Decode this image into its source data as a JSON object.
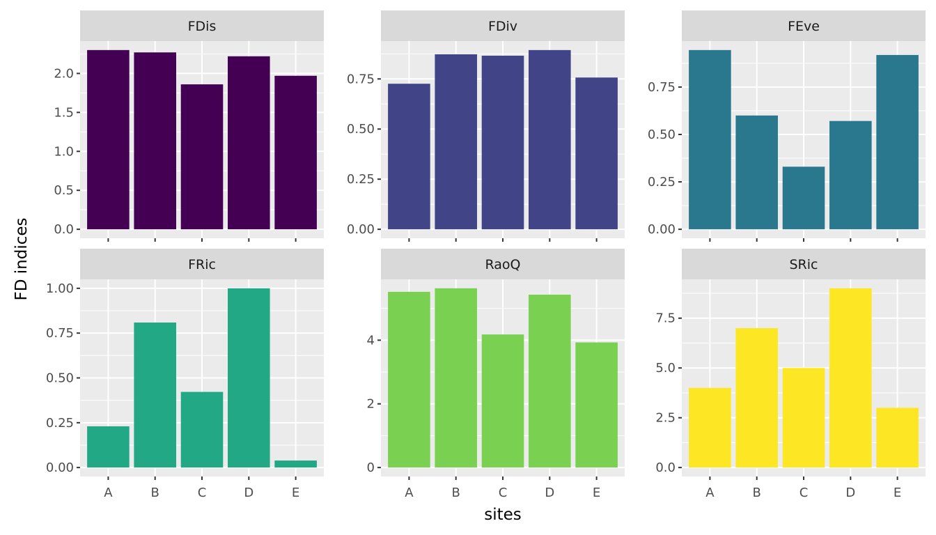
{
  "chart_data": {
    "type": "bar",
    "layout": "facet_wrap 2x3, free y scales",
    "xlabel": "sites",
    "ylabel": "FD indices",
    "categories": [
      "A",
      "B",
      "C",
      "D",
      "E"
    ],
    "panels": [
      {
        "name": "FDis",
        "color": "#440154",
        "values": [
          2.3,
          2.27,
          1.86,
          2.22,
          1.97
        ],
        "yticks": [
          0.0,
          0.5,
          1.0,
          1.5,
          2.0
        ],
        "tick_labels": [
          "0.0",
          "0.5",
          "1.0",
          "1.5",
          "2.0"
        ]
      },
      {
        "name": "FDiv",
        "color": "#414487",
        "values": [
          0.726,
          0.873,
          0.866,
          0.894,
          0.757
        ],
        "yticks": [
          0.0,
          0.25,
          0.5,
          0.75
        ],
        "tick_labels": [
          "0.00",
          "0.25",
          "0.50",
          "0.75"
        ]
      },
      {
        "name": "FEve",
        "color": "#2A788E",
        "values": [
          0.945,
          0.6,
          0.33,
          0.571,
          0.919
        ],
        "yticks": [
          0.0,
          0.25,
          0.5,
          0.75
        ],
        "tick_labels": [
          "0.00",
          "0.25",
          "0.50",
          "0.75"
        ]
      },
      {
        "name": "FRic",
        "color": "#22A884",
        "values": [
          0.23,
          0.809,
          0.422,
          1.0,
          0.039
        ],
        "yticks": [
          0.0,
          0.25,
          0.5,
          0.75,
          1.0
        ],
        "tick_labels": [
          "0.00",
          "0.25",
          "0.50",
          "0.75",
          "1.00"
        ]
      },
      {
        "name": "RaoQ",
        "color": "#7AD151",
        "values": [
          5.52,
          5.63,
          4.18,
          5.43,
          3.93
        ],
        "yticks": [
          0,
          2,
          4
        ],
        "tick_labels": [
          "0",
          "2",
          "4"
        ]
      },
      {
        "name": "SRic",
        "color": "#FDE725",
        "values": [
          4,
          7,
          5,
          9,
          3
        ],
        "yticks": [
          0.0,
          2.5,
          5.0,
          7.5
        ],
        "tick_labels": [
          "0.0",
          "2.5",
          "5.0",
          "7.5"
        ]
      }
    ]
  }
}
